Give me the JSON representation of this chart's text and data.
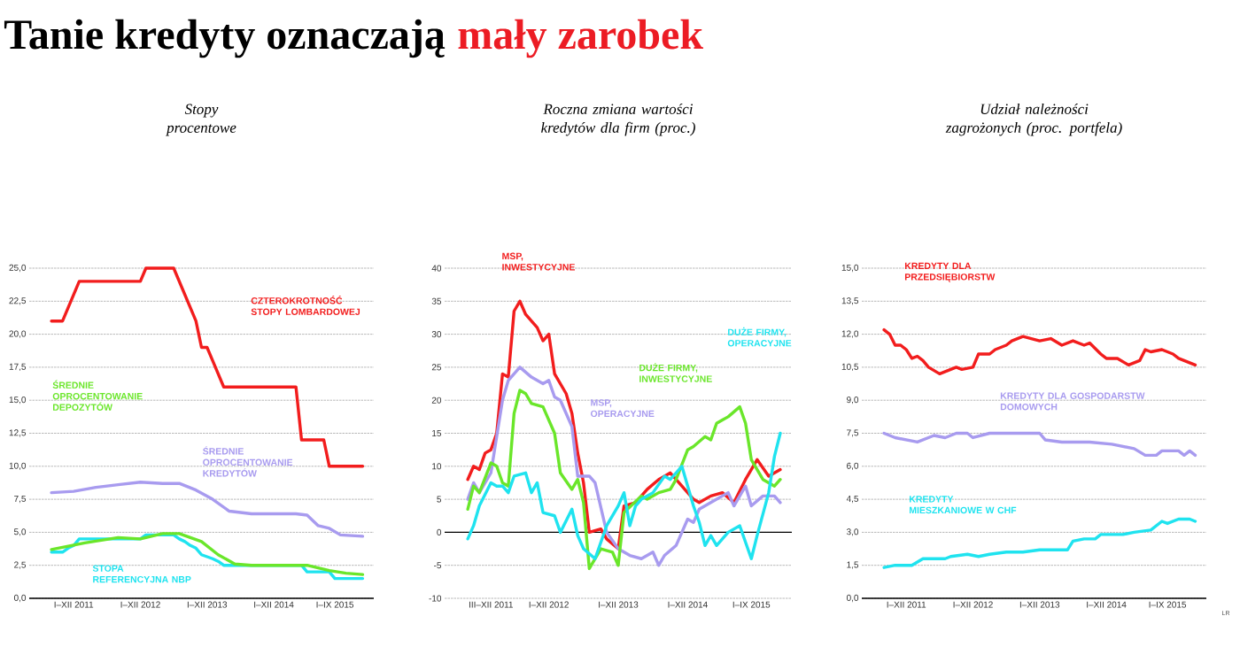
{
  "chart_data": [
    {
      "type": "line",
      "title": "Stopy procentowe",
      "annotations": [
        "Tanie kredyty oznaczają",
        "mały zarobek"
      ],
      "grid": "y",
      "xlim": [
        "2010-09",
        "2015-11"
      ],
      "ylim": [
        0,
        25
      ],
      "xticks": [
        {
          "value": "2011-05",
          "label": "I–XII 2011"
        },
        {
          "value": "2012-05",
          "label": "I–XII 2012"
        },
        {
          "value": "2013-05",
          "label": "I–XII 2013"
        },
        {
          "value": "2014-05",
          "label": "I–XII 2014"
        },
        {
          "value": "2015-04",
          "label": "I–IX 2015"
        }
      ],
      "yticks": [
        {
          "value": 0,
          "label": "0,0"
        },
        {
          "value": 2.5,
          "label": "2,5"
        },
        {
          "value": 5,
          "label": "5,0"
        },
        {
          "value": 7.5,
          "label": "7,5"
        },
        {
          "value": 10,
          "label": "10,0"
        },
        {
          "value": 12.5,
          "label": "12,5"
        },
        {
          "value": 15,
          "label": "15,0"
        },
        {
          "value": 17.5,
          "label": "17,5"
        },
        {
          "value": 20,
          "label": "20,0"
        },
        {
          "value": 22.5,
          "label": "22,5"
        },
        {
          "value": 25,
          "label": "25,0"
        }
      ],
      "series": [
        {
          "name": "CZTEROKROTNOŚĆ STOPY LOMBARDOWEJ",
          "color": "#f21d1d",
          "x": [
            "2011-01",
            "2011-03",
            "2011-06",
            "2012-05",
            "2012-06",
            "2012-11",
            "2013-03",
            "2013-04",
            "2013-05",
            "2013-06",
            "2013-07",
            "2013-08",
            "2014-09",
            "2014-10",
            "2015-02",
            "2015-03",
            "2015-09"
          ],
          "values": [
            21,
            21,
            24,
            24,
            25,
            25,
            21,
            19,
            19,
            18,
            17,
            16,
            16,
            12,
            12,
            10,
            10
          ]
        },
        {
          "name": "ŚREDNIE OPROCENTOWANIE KREDYTÓW",
          "color": "#a89bef",
          "x": [
            "2011-01",
            "2011-05",
            "2011-09",
            "2012-01",
            "2012-05",
            "2012-09",
            "2012-12",
            "2013-03",
            "2013-06",
            "2013-09",
            "2014-01",
            "2014-05",
            "2014-09",
            "2014-11",
            "2015-01",
            "2015-03",
            "2015-05",
            "2015-09"
          ],
          "values": [
            8.0,
            8.1,
            8.4,
            8.6,
            8.8,
            8.7,
            8.7,
            8.2,
            7.5,
            6.6,
            6.4,
            6.4,
            6.4,
            6.3,
            5.5,
            5.3,
            4.8,
            4.7
          ]
        },
        {
          "name": "STOPA REFERENCYJNA NBP",
          "color": "#1fe3ef",
          "x": [
            "2011-01",
            "2011-03",
            "2011-04",
            "2011-05",
            "2011-06",
            "2012-05",
            "2012-06",
            "2012-11",
            "2012-12",
            "2013-01",
            "2013-02",
            "2013-03",
            "2013-04",
            "2013-06",
            "2013-07",
            "2013-08",
            "2014-10",
            "2014-11",
            "2015-03",
            "2015-04",
            "2015-09"
          ],
          "values": [
            3.5,
            3.5,
            3.8,
            4.0,
            4.5,
            4.5,
            4.8,
            4.8,
            4.5,
            4.3,
            4.0,
            3.8,
            3.3,
            3.0,
            2.8,
            2.5,
            2.5,
            2.0,
            2.0,
            1.5,
            1.5
          ]
        },
        {
          "name": "ŚREDNIE OPROCENTOWANIE DEPOZYTÓW",
          "color": "#6ae62a",
          "x": [
            "2011-01",
            "2011-07",
            "2012-01",
            "2012-05",
            "2012-09",
            "2012-12",
            "2013-04",
            "2013-07",
            "2013-10",
            "2014-01",
            "2014-11",
            "2015-03",
            "2015-06",
            "2015-09"
          ],
          "values": [
            3.7,
            4.2,
            4.6,
            4.5,
            4.9,
            4.9,
            4.3,
            3.3,
            2.6,
            2.5,
            2.5,
            2.1,
            1.9,
            1.8
          ]
        }
      ]
    },
    {
      "type": "line",
      "title": "Roczna zmiana wartości kredytów dla firm (proc.)",
      "grid": "y",
      "xlim": [
        "2010-11",
        "2015-11"
      ],
      "ylim": [
        -10,
        40
      ],
      "xticks": [
        {
          "value": "2011-07",
          "label": "III–XII 2011"
        },
        {
          "value": "2012-05",
          "label": "I–XII 2012"
        },
        {
          "value": "2013-05",
          "label": "I–XII 2013"
        },
        {
          "value": "2014-05",
          "label": "I–XII 2014"
        },
        {
          "value": "2015-04",
          "label": "I–IX 2015"
        }
      ],
      "yticks": [
        -10,
        -5,
        0,
        5,
        10,
        15,
        20,
        25,
        30,
        35,
        40
      ],
      "series": [
        {
          "name": "MSP, INWESTYCYJNE",
          "color": "#f21d1d",
          "x": [
            "2011-03",
            "2011-04",
            "2011-05",
            "2011-06",
            "2011-07",
            "2011-08",
            "2011-09",
            "2011-10",
            "2011-11",
            "2011-12",
            "2012-01",
            "2012-03",
            "2012-04",
            "2012-05",
            "2012-06",
            "2012-08",
            "2012-09",
            "2012-10",
            "2012-11",
            "2012-12",
            "2013-02",
            "2013-03",
            "2013-05",
            "2013-06",
            "2013-08",
            "2013-10",
            "2013-12",
            "2014-02",
            "2014-03",
            "2014-05",
            "2014-06",
            "2014-07",
            "2014-09",
            "2014-11",
            "2015-01",
            "2015-03",
            "2015-05",
            "2015-07",
            "2015-09"
          ],
          "values": [
            8,
            10,
            9.5,
            12,
            12.5,
            15,
            24,
            23.5,
            33.5,
            35,
            33,
            31,
            29,
            30,
            24,
            21,
            18,
            12,
            7.5,
            0,
            0.5,
            -1,
            -2.5,
            4,
            4.5,
            6.5,
            8,
            9,
            8,
            6,
            5,
            4.5,
            5.5,
            6,
            4.5,
            8,
            11,
            8.5,
            9.5
          ]
        },
        {
          "name": "MSP, OPERACYJNE",
          "color": "#a89bef",
          "x": [
            "2011-03",
            "2011-04",
            "2011-05",
            "2011-07",
            "2011-09",
            "2011-10",
            "2011-12",
            "2012-02",
            "2012-04",
            "2012-05",
            "2012-06",
            "2012-07",
            "2012-09",
            "2012-10",
            "2012-12",
            "2013-01",
            "2013-03",
            "2013-05",
            "2013-07",
            "2013-09",
            "2013-11",
            "2013-12",
            "2014-01",
            "2014-03",
            "2014-05",
            "2014-06",
            "2014-07",
            "2014-09",
            "2014-12",
            "2015-01",
            "2015-03",
            "2015-04",
            "2015-06",
            "2015-08",
            "2015-09"
          ],
          "values": [
            5,
            7.5,
            6,
            9,
            20,
            23,
            25,
            23.5,
            22.5,
            23,
            20.5,
            20,
            16,
            8.5,
            8.5,
            7.5,
            0,
            -2.5,
            -3.5,
            -4,
            -3,
            -5,
            -3.5,
            -2,
            2,
            1.5,
            3.5,
            4.5,
            6,
            4,
            7,
            4,
            5.5,
            5.5,
            4.5
          ]
        },
        {
          "name": "DUŻE FIRMY, INWESTYCYJNE",
          "color": "#6ae62a",
          "x": [
            "2011-03",
            "2011-04",
            "2011-05",
            "2011-07",
            "2011-08",
            "2011-09",
            "2011-10",
            "2011-11",
            "2011-12",
            "2012-01",
            "2012-02",
            "2012-04",
            "2012-06",
            "2012-07",
            "2012-09",
            "2012-10",
            "2012-11",
            "2012-12",
            "2013-02",
            "2013-04",
            "2013-05",
            "2013-06",
            "2013-09",
            "2013-10",
            "2013-12",
            "2014-02",
            "2014-03",
            "2014-05",
            "2014-06",
            "2014-08",
            "2014-09",
            "2014-10",
            "2014-11",
            "2014-12",
            "2015-02",
            "2015-03",
            "2015-04",
            "2015-06",
            "2015-08",
            "2015-09"
          ],
          "values": [
            3.5,
            7,
            6,
            10.5,
            10,
            7.5,
            7,
            18,
            21.5,
            21,
            19.5,
            19,
            15,
            9,
            6.5,
            8,
            4.5,
            -5.5,
            -2.5,
            -3,
            -5,
            3,
            5.5,
            5,
            6,
            6.5,
            8,
            12.5,
            13,
            14.5,
            14,
            16.5,
            17,
            17.5,
            19,
            16.5,
            11,
            8,
            7,
            8
          ]
        },
        {
          "name": "DUŻE FIRMY, OPERACYJNE",
          "color": "#1fe3ef",
          "x": [
            "2011-03",
            "2011-04",
            "2011-05",
            "2011-07",
            "2011-08",
            "2011-09",
            "2011-10",
            "2011-11",
            "2012-01",
            "2012-02",
            "2012-03",
            "2012-04",
            "2012-06",
            "2012-07",
            "2012-09",
            "2012-10",
            "2012-11",
            "2013-01",
            "2013-03",
            "2013-05",
            "2013-06",
            "2013-07",
            "2013-08",
            "2013-09",
            "2013-11",
            "2014-01",
            "2014-02",
            "2014-04",
            "2014-06",
            "2014-07",
            "2014-08",
            "2014-09",
            "2014-10",
            "2014-12",
            "2015-02",
            "2015-04",
            "2015-05",
            "2015-07",
            "2015-08",
            "2015-09"
          ],
          "values": [
            -1,
            1,
            4,
            7.5,
            7,
            7,
            6,
            8.5,
            9,
            6,
            7.5,
            3,
            2.5,
            0,
            3.5,
            -0.5,
            -2.5,
            -4,
            1,
            4,
            6,
            1,
            4,
            5,
            6,
            8.5,
            8,
            10,
            4,
            1.5,
            -2,
            -0.5,
            -2,
            0,
            1,
            -4,
            -0.5,
            6,
            11.5,
            15
          ]
        }
      ]
    },
    {
      "type": "line",
      "title": "Udział należności zagrożonych (proc. portfela)",
      "annotations": [
        "LR"
      ],
      "grid": "y",
      "xlim": [
        "2010-09",
        "2015-11"
      ],
      "ylim": [
        0,
        15
      ],
      "xticks": [
        {
          "value": "2011-05",
          "label": "I–XII 2011"
        },
        {
          "value": "2012-05",
          "label": "I–XII 2012"
        },
        {
          "value": "2013-05",
          "label": "I–XII 2013"
        },
        {
          "value": "2014-05",
          "label": "I–XII 2014"
        },
        {
          "value": "2015-04",
          "label": "I–IX 2015"
        }
      ],
      "yticks": [
        {
          "value": 0,
          "label": "0,0"
        },
        {
          "value": 1.5,
          "label": "1,5"
        },
        {
          "value": 3,
          "label": "3,0"
        },
        {
          "value": 4.5,
          "label": "4,5"
        },
        {
          "value": 6,
          "label": "6,0"
        },
        {
          "value": 7.5,
          "label": "7,5"
        },
        {
          "value": 9,
          "label": "9,0"
        },
        {
          "value": 10.5,
          "label": "10,5"
        },
        {
          "value": 12,
          "label": "12,0"
        },
        {
          "value": 13.5,
          "label": "13,5"
        },
        {
          "value": 15,
          "label": "15,0"
        }
      ],
      "series": [
        {
          "name": "KREDYTY DLA PRZEDSIĘBIORSTW",
          "color": "#f21d1d",
          "x": [
            "2011-01",
            "2011-02",
            "2011-03",
            "2011-04",
            "2011-05",
            "2011-06",
            "2011-07",
            "2011-08",
            "2011-09",
            "2011-11",
            "2012-01",
            "2012-02",
            "2012-03",
            "2012-05",
            "2012-06",
            "2012-08",
            "2012-09",
            "2012-11",
            "2012-12",
            "2013-02",
            "2013-05",
            "2013-07",
            "2013-09",
            "2013-11",
            "2014-01",
            "2014-02",
            "2014-04",
            "2014-05",
            "2014-07",
            "2014-09",
            "2014-11",
            "2014-12",
            "2015-01",
            "2015-03",
            "2015-05",
            "2015-06",
            "2015-09"
          ],
          "values": [
            12.2,
            12,
            11.5,
            11.5,
            11.3,
            10.9,
            11,
            10.8,
            10.5,
            10.2,
            10.4,
            10.5,
            10.4,
            10.5,
            11.1,
            11.1,
            11.3,
            11.5,
            11.7,
            11.9,
            11.7,
            11.8,
            11.5,
            11.7,
            11.5,
            11.6,
            11.1,
            10.9,
            10.9,
            10.6,
            10.8,
            11.3,
            11.2,
            11.3,
            11.1,
            10.9,
            10.6
          ]
        },
        {
          "name": "KREDYTY DLA GOSPODARSTW DOMOWYCH",
          "color": "#a89bef",
          "x": [
            "2011-01",
            "2011-03",
            "2011-07",
            "2011-10",
            "2011-12",
            "2012-02",
            "2012-04",
            "2012-05",
            "2012-08",
            "2012-12",
            "2013-02",
            "2013-05",
            "2013-06",
            "2013-09",
            "2014-02",
            "2014-06",
            "2014-10",
            "2014-12",
            "2015-02",
            "2015-03",
            "2015-06",
            "2015-07",
            "2015-08",
            "2015-09"
          ],
          "values": [
            7.5,
            7.3,
            7.1,
            7.4,
            7.3,
            7.5,
            7.5,
            7.3,
            7.5,
            7.5,
            7.5,
            7.5,
            7.2,
            7.1,
            7.1,
            7,
            6.8,
            6.5,
            6.5,
            6.7,
            6.7,
            6.5,
            6.7,
            6.5
          ]
        },
        {
          "name": "KREDYTY MIESZKANIOWE W CHF",
          "color": "#1fe3ef",
          "x": [
            "2011-01",
            "2011-03",
            "2011-06",
            "2011-08",
            "2011-12",
            "2012-01",
            "2012-04",
            "2012-06",
            "2012-08",
            "2012-11",
            "2013-02",
            "2013-05",
            "2013-10",
            "2013-11",
            "2014-01",
            "2014-03",
            "2014-04",
            "2014-08",
            "2014-10",
            "2015-01",
            "2015-03",
            "2015-04",
            "2015-06",
            "2015-08",
            "2015-09"
          ],
          "values": [
            1.4,
            1.5,
            1.5,
            1.8,
            1.8,
            1.9,
            2.0,
            1.9,
            2.0,
            2.1,
            2.1,
            2.2,
            2.2,
            2.6,
            2.7,
            2.7,
            2.9,
            2.9,
            3.0,
            3.1,
            3.5,
            3.4,
            3.6,
            3.6,
            3.5
          ]
        }
      ]
    }
  ]
}
